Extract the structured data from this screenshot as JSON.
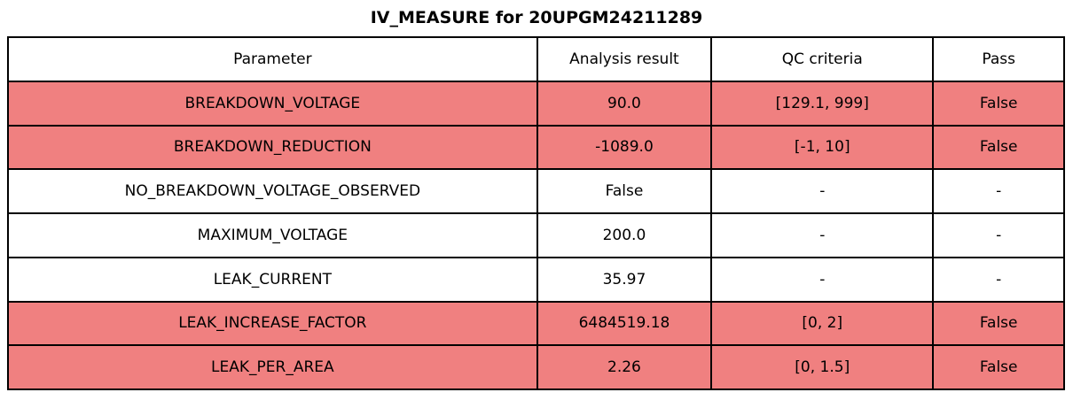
{
  "title": "IV_MEASURE for 20UPGM24211289",
  "header": [
    "Parameter",
    "Analysis result",
    "QC criteria",
    "Pass"
  ],
  "rows": [
    [
      "BREAKDOWN_VOLTAGE",
      "90.0",
      "[129.1, 999]",
      "False"
    ],
    [
      "BREAKDOWN_REDUCTION",
      "-1089.0",
      "[-1, 10]",
      "False"
    ],
    [
      "NO_BREAKDOWN_VOLTAGE_OBSERVED",
      "False",
      "-",
      "-"
    ],
    [
      "MAXIMUM_VOLTAGE",
      "200.0",
      "-",
      "-"
    ],
    [
      "LEAK_CURRENT",
      "35.97",
      "-",
      "-"
    ],
    [
      "LEAK_INCREASE_FACTOR",
      "6484519.18",
      "[0, 2]",
      "False"
    ],
    [
      "LEAK_PER_AREA",
      "2.26",
      "[0, 1.5]",
      "False"
    ]
  ],
  "row_status": [
    "fail",
    "fail",
    "pass",
    "pass",
    "pass",
    "fail",
    "fail"
  ],
  "colors": {
    "fail_row_bg": "#F08080",
    "normal_row_bg": "#FFFFFF",
    "border": "#000000",
    "text": "#000000"
  },
  "chart_data": {
    "type": "table",
    "title": "IV_MEASURE for 20UPGM24211289",
    "columns": [
      "Parameter",
      "Analysis result",
      "QC criteria",
      "Pass"
    ],
    "rows": [
      [
        "BREAKDOWN_VOLTAGE",
        "90.0",
        "[129.1, 999]",
        "False"
      ],
      [
        "BREAKDOWN_REDUCTION",
        "-1089.0",
        "[-1, 10]",
        "False"
      ],
      [
        "NO_BREAKDOWN_VOLTAGE_OBSERVED",
        "False",
        "-",
        "-"
      ],
      [
        "MAXIMUM_VOLTAGE",
        "200.0",
        "-",
        "-"
      ],
      [
        "LEAK_CURRENT",
        "35.97",
        "-",
        "-"
      ],
      [
        "LEAK_INCREASE_FACTOR",
        "6484519.18",
        "[0, 2]",
        "False"
      ],
      [
        "LEAK_PER_AREA",
        "2.26",
        "[0, 1.5]",
        "False"
      ]
    ],
    "failed_row_indices": [
      0,
      1,
      5,
      6
    ],
    "fail_highlight_color": "#F08080",
    "layout": "title top-center, full-width bordered table, all cells center-aligned"
  }
}
